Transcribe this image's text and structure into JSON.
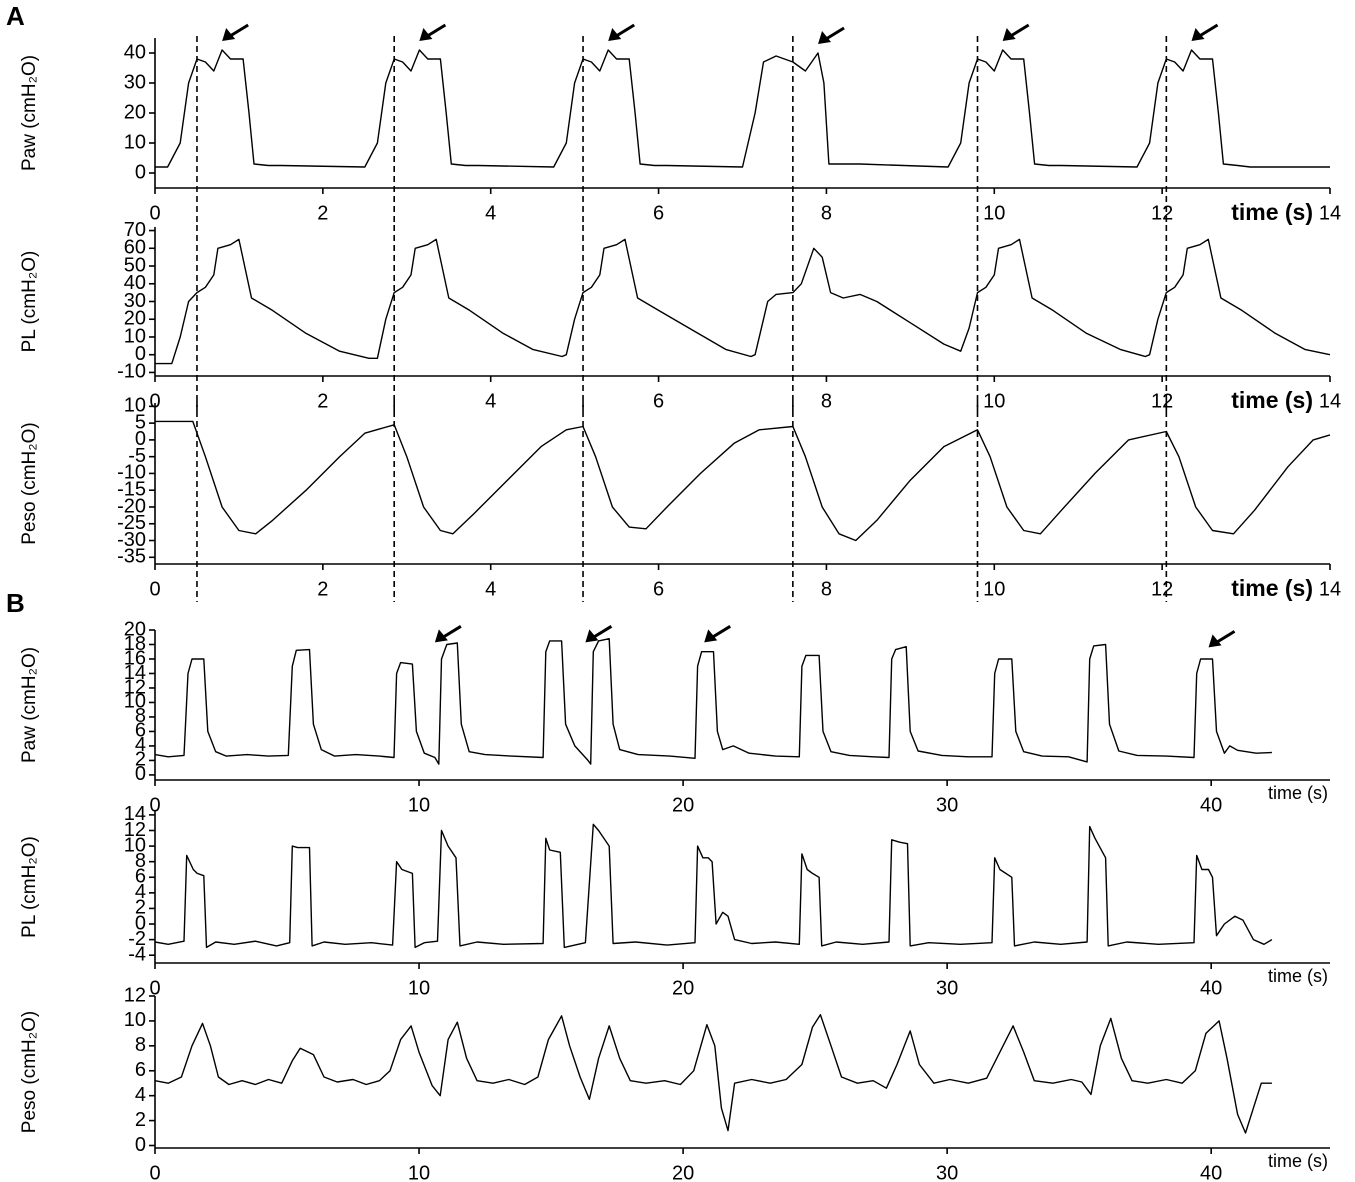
{
  "panel_labels": [
    "A",
    "B"
  ],
  "chart_data": [
    {
      "type": "line",
      "ylabel": "Paw (cmH₂O)",
      "xlabel": "time (s)",
      "color": "#000000",
      "xlim": [
        0,
        14
      ],
      "ylim": [
        -5,
        45
      ],
      "xticks": [
        0,
        2,
        4,
        6,
        8,
        10,
        12,
        14
      ],
      "yticks": [
        0,
        10,
        20,
        30,
        40
      ],
      "markers": [
        0.5,
        2.85,
        5.1,
        7.6,
        9.8,
        12.05
      ],
      "arrows": [
        [
          0.8,
          44
        ],
        [
          3.15,
          44
        ],
        [
          5.4,
          44
        ],
        [
          7.9,
          43
        ],
        [
          10.1,
          44
        ],
        [
          12.35,
          44
        ]
      ],
      "x": [
        0,
        0.15,
        0.3,
        0.4,
        0.5,
        0.6,
        0.7,
        0.8,
        0.9,
        1.05,
        1.12,
        1.18,
        1.35,
        1.5,
        2.5,
        2.65,
        2.75,
        2.85,
        2.95,
        3.05,
        3.15,
        3.25,
        3.4,
        3.47,
        3.53,
        3.7,
        3.85,
        4.75,
        4.9,
        5.0,
        5.1,
        5.2,
        5.3,
        5.4,
        5.5,
        5.65,
        5.72,
        5.78,
        5.95,
        6.1,
        7.0,
        7.15,
        7.25,
        7.4,
        7.6,
        7.75,
        7.9,
        7.97,
        8.03,
        8.2,
        8.4,
        9.45,
        9.6,
        9.7,
        9.8,
        9.9,
        10.0,
        10.1,
        10.2,
        10.35,
        10.42,
        10.48,
        10.65,
        10.8,
        11.7,
        11.85,
        11.95,
        12.05,
        12.15,
        12.25,
        12.35,
        12.45,
        12.6,
        12.67,
        12.73,
        12.9,
        13.05,
        14
      ],
      "values": [
        2,
        2,
        10,
        30,
        38,
        37,
        34,
        41,
        38,
        38,
        20,
        3,
        2.5,
        2.5,
        2,
        10,
        30,
        38,
        37,
        34,
        41,
        38,
        38,
        20,
        3,
        2.5,
        2.5,
        2,
        10,
        30,
        38,
        37,
        34,
        41,
        38,
        38,
        20,
        3,
        2.5,
        2.5,
        2,
        20,
        37,
        39,
        37,
        34,
        40,
        30,
        3,
        3,
        3,
        2,
        10,
        30,
        38,
        37,
        34,
        41,
        38,
        38,
        20,
        3,
        2.5,
        2.5,
        2,
        10,
        30,
        38,
        37,
        34,
        41,
        38,
        38,
        20,
        3,
        2.5,
        2,
        2
      ]
    },
    {
      "type": "line",
      "ylabel": "PL (cmH₂O)",
      "xlabel": "time (s)",
      "color": "#000000",
      "xlim": [
        0,
        14
      ],
      "ylim": [
        -12,
        72
      ],
      "xticks": [
        0,
        2,
        4,
        6,
        8,
        10,
        12,
        14
      ],
      "yticks": [
        -10,
        0,
        10,
        20,
        30,
        40,
        50,
        60,
        70
      ],
      "markers": [
        0.5,
        2.85,
        5.1,
        7.6,
        9.8,
        12.05
      ],
      "x": [
        0,
        0.2,
        0.3,
        0.4,
        0.5,
        0.6,
        0.7,
        0.75,
        0.9,
        1.0,
        1.15,
        1.4,
        1.8,
        2.2,
        2.55,
        2.65,
        2.75,
        2.85,
        2.95,
        3.05,
        3.1,
        3.25,
        3.35,
        3.5,
        3.75,
        4.15,
        4.5,
        4.85,
        4.9,
        5.0,
        5.1,
        5.2,
        5.3,
        5.35,
        5.5,
        5.6,
        5.75,
        6.0,
        6.4,
        6.8,
        7.1,
        7.15,
        7.3,
        7.4,
        7.6,
        7.7,
        7.85,
        7.95,
        8.05,
        8.2,
        8.4,
        8.6,
        9.0,
        9.4,
        9.6,
        9.7,
        9.8,
        9.9,
        10.0,
        10.05,
        10.2,
        10.3,
        10.45,
        10.7,
        11.1,
        11.5,
        11.8,
        11.85,
        11.95,
        12.05,
        12.15,
        12.25,
        12.3,
        12.45,
        12.55,
        12.7,
        12.95,
        13.35,
        13.7,
        14.0
      ],
      "values": [
        -5,
        -5,
        10,
        30,
        35,
        38,
        45,
        60,
        62,
        65,
        32,
        25,
        12,
        2,
        -2,
        -2,
        20,
        35,
        38,
        45,
        60,
        62,
        65,
        32,
        25,
        12,
        3,
        -1,
        0,
        20,
        35,
        38,
        45,
        60,
        62,
        65,
        32,
        25,
        14,
        3,
        -1,
        0,
        30,
        34,
        35,
        40,
        60,
        55,
        35,
        32,
        34,
        30,
        18,
        6,
        2,
        15,
        35,
        38,
        45,
        60,
        62,
        65,
        32,
        25,
        12,
        3,
        -1,
        0,
        20,
        35,
        38,
        45,
        60,
        62,
        65,
        32,
        25,
        12,
        3,
        0
      ]
    },
    {
      "type": "line",
      "ylabel": "Peso (cmH₂O)",
      "xlabel": "time (s)",
      "color": "#000000",
      "xlim": [
        0,
        14
      ],
      "ylim": [
        -37,
        11
      ],
      "xticks": [
        0,
        2,
        4,
        6,
        8,
        10,
        12,
        14
      ],
      "yticks": [
        -35,
        -30,
        -25,
        -20,
        -15,
        -10,
        -5,
        0,
        5,
        10
      ],
      "markers": [
        0.5,
        2.85,
        5.1,
        7.6,
        9.8,
        12.05
      ],
      "x": [
        0,
        0.45,
        0.6,
        0.8,
        1.0,
        1.2,
        1.4,
        1.8,
        2.2,
        2.5,
        2.85,
        3.0,
        3.2,
        3.4,
        3.55,
        3.8,
        4.2,
        4.6,
        4.9,
        5.1,
        5.25,
        5.45,
        5.65,
        5.85,
        6.1,
        6.5,
        6.9,
        7.2,
        7.6,
        7.75,
        7.95,
        8.15,
        8.35,
        8.6,
        9.0,
        9.4,
        9.8,
        9.95,
        10.15,
        10.35,
        10.55,
        10.8,
        11.2,
        11.6,
        12.05,
        12.2,
        12.4,
        12.6,
        12.85,
        13.1,
        13.5,
        13.8,
        14.0
      ],
      "values": [
        5.5,
        5.5,
        -5,
        -20,
        -27,
        -28,
        -24,
        -15,
        -5,
        2,
        4.5,
        -5,
        -20,
        -27,
        -28,
        -22,
        -12,
        -2,
        3,
        4,
        -5,
        -20,
        -26,
        -26.5,
        -20,
        -10,
        -1,
        3,
        4,
        -5,
        -20,
        -28,
        -30,
        -24,
        -12,
        -2,
        3,
        -5,
        -20,
        -27,
        -28,
        -21,
        -10,
        0,
        2.5,
        -5,
        -20,
        -27,
        -28,
        -21,
        -8,
        0,
        1.5
      ]
    },
    {
      "type": "line",
      "ylabel": "Paw (cmH₂O)",
      "xlabel": "time (s)",
      "color": "#000000",
      "xlim": [
        0,
        44.5
      ],
      "ylim": [
        -0.7,
        20
      ],
      "xticks": [
        0,
        10,
        20,
        30,
        40
      ],
      "yticks": [
        0,
        2,
        4,
        6,
        8,
        10,
        12,
        14,
        16,
        18,
        20
      ],
      "arrows": [
        [
          10.6,
          18.3
        ],
        [
          16.3,
          18.3
        ],
        [
          20.8,
          18.3
        ],
        [
          39.9,
          17.6
        ]
      ],
      "x": [
        0,
        0.5,
        1.1,
        1.25,
        1.4,
        1.85,
        2.0,
        2.3,
        2.7,
        3.5,
        4.3,
        5.05,
        5.2,
        5.35,
        5.85,
        6.0,
        6.3,
        6.8,
        7.6,
        8.5,
        9.05,
        9.15,
        9.3,
        9.75,
        9.9,
        10.2,
        10.6,
        10.75,
        10.85,
        11.05,
        11.45,
        11.6,
        11.9,
        12.5,
        13.5,
        14.7,
        14.8,
        14.95,
        15.4,
        15.55,
        15.9,
        16.4,
        16.5,
        16.6,
        16.8,
        17.2,
        17.35,
        17.6,
        18.3,
        19.5,
        20.45,
        20.55,
        20.7,
        21.15,
        21.3,
        21.5,
        21.9,
        22.5,
        23.5,
        24.4,
        24.5,
        24.65,
        25.15,
        25.3,
        25.6,
        26.3,
        27.2,
        27.8,
        27.9,
        28.05,
        28.45,
        28.6,
        28.9,
        29.8,
        30.8,
        31.7,
        31.8,
        31.95,
        32.45,
        32.6,
        32.9,
        33.6,
        34.6,
        35.3,
        35.4,
        35.55,
        36.0,
        36.15,
        36.5,
        37.2,
        38.3,
        39.35,
        39.45,
        39.6,
        40.05,
        40.2,
        40.5,
        40.7,
        41.0,
        41.7,
        42.3
      ],
      "values": [
        2.8,
        2.5,
        2.7,
        14,
        16,
        16,
        6,
        3.2,
        2.6,
        2.8,
        2.6,
        2.7,
        15,
        17.2,
        17.3,
        7,
        3.5,
        2.6,
        2.8,
        2.6,
        2.4,
        14,
        15.5,
        15.3,
        6,
        3,
        2.4,
        1.5,
        16,
        18,
        18.2,
        7,
        3.2,
        2.8,
        2.6,
        2.4,
        17,
        18.5,
        18.5,
        7,
        4,
        2,
        1.5,
        17,
        18.5,
        18.8,
        7,
        3.5,
        2.8,
        2.6,
        2.3,
        15,
        17,
        17,
        6,
        3.5,
        4,
        3,
        2.6,
        2.5,
        15,
        16.5,
        16.5,
        6,
        3.2,
        2.7,
        2.5,
        2.4,
        16,
        17.3,
        17.7,
        6,
        3.3,
        2.7,
        2.5,
        2.5,
        14,
        16,
        16,
        6,
        3.2,
        2.6,
        2.5,
        1.8,
        16,
        17.8,
        18,
        7,
        3.3,
        2.7,
        2.6,
        2.4,
        14,
        16,
        16,
        6,
        3,
        4,
        3.4,
        3,
        3.1
      ]
    },
    {
      "type": "line",
      "ylabel": "PL (cmH₂O)",
      "xlabel": "time (s)",
      "color": "#000000",
      "xlim": [
        0,
        44.5
      ],
      "ylim": [
        -5,
        14.5
      ],
      "xticks": [
        0,
        10,
        20,
        30,
        40
      ],
      "yticks": [
        -4,
        -2,
        0,
        2,
        4,
        6,
        8,
        10,
        12,
        14
      ],
      "x": [
        0,
        0.5,
        1.1,
        1.2,
        1.45,
        1.6,
        1.85,
        1.95,
        2.3,
        3.0,
        3.8,
        4.6,
        5.1,
        5.2,
        5.4,
        5.85,
        5.95,
        6.4,
        7.2,
        8.2,
        9.0,
        9.15,
        9.35,
        9.75,
        9.85,
        10.2,
        10.7,
        10.85,
        11.1,
        11.4,
        11.55,
        12.2,
        13.2,
        14.7,
        14.8,
        14.95,
        15.35,
        15.5,
        16.3,
        16.6,
        16.8,
        17.2,
        17.35,
        18.2,
        19.4,
        20.45,
        20.55,
        20.75,
        20.95,
        21.1,
        21.25,
        21.5,
        21.7,
        21.95,
        22.6,
        23.5,
        24.4,
        24.5,
        24.7,
        24.9,
        25.15,
        25.25,
        25.8,
        26.8,
        27.8,
        27.9,
        28.2,
        28.5,
        28.6,
        29.3,
        30.5,
        31.7,
        31.8,
        32.0,
        32.45,
        32.55,
        33.3,
        34.3,
        35.3,
        35.4,
        35.6,
        36.0,
        36.1,
        36.8,
        38.0,
        39.35,
        39.45,
        39.65,
        39.9,
        40.05,
        40.2,
        40.5,
        40.9,
        41.2,
        41.6,
        42.0,
        42.3
      ],
      "values": [
        -2.3,
        -2.6,
        -2.2,
        8.8,
        7,
        6.5,
        6.2,
        -3,
        -2.3,
        -2.6,
        -2.2,
        -2.8,
        -2.4,
        10,
        9.8,
        9.8,
        -2.8,
        -2.3,
        -2.6,
        -2.4,
        -2.7,
        8,
        7,
        6.5,
        -3,
        -2.4,
        -2.2,
        12,
        10,
        8.5,
        -2.8,
        -2.3,
        -2.6,
        -2.5,
        11,
        9.5,
        9.2,
        -3,
        -2.4,
        12.8,
        12,
        10,
        -2.5,
        -2.3,
        -2.7,
        -2.4,
        10,
        8.5,
        8.5,
        8,
        0,
        1.5,
        1,
        -2,
        -2.5,
        -2.3,
        -2.6,
        9,
        7,
        6.5,
        6,
        -2.8,
        -2.3,
        -2.6,
        -2.3,
        10.8,
        10.5,
        10.3,
        -2.8,
        -2.4,
        -2.6,
        -2.4,
        8.5,
        7,
        6,
        -2.8,
        -2.3,
        -2.6,
        -2.3,
        12.5,
        11,
        8.5,
        -2.8,
        -2.3,
        -2.6,
        -2.4,
        8.8,
        7,
        7,
        6,
        -1.5,
        0,
        1,
        0.5,
        -2,
        -2.6,
        -2
      ]
    },
    {
      "type": "line",
      "ylabel": "Peso (cmH₂O)",
      "xlabel": "time (s)",
      "color": "#000000",
      "xlim": [
        0,
        44.5
      ],
      "ylim": [
        -0.2,
        12
      ],
      "xticks": [
        0,
        10,
        20,
        30,
        40
      ],
      "yticks": [
        0,
        2,
        4,
        6,
        8,
        10,
        12
      ],
      "x": [
        0,
        0.5,
        1.0,
        1.4,
        1.8,
        2.1,
        2.4,
        2.8,
        3.3,
        3.8,
        4.3,
        4.8,
        5.2,
        5.5,
        6.0,
        6.4,
        6.9,
        7.5,
        8.0,
        8.5,
        8.9,
        9.3,
        9.7,
        10.0,
        10.5,
        10.8,
        11.1,
        11.45,
        11.8,
        12.2,
        12.8,
        13.4,
        14.0,
        14.5,
        14.9,
        15.4,
        15.7,
        16.1,
        16.45,
        16.8,
        17.2,
        17.6,
        18.0,
        18.6,
        19.3,
        19.9,
        20.4,
        20.9,
        21.2,
        21.45,
        21.7,
        21.95,
        22.6,
        23.3,
        23.9,
        24.5,
        24.9,
        25.2,
        25.6,
        26.0,
        26.6,
        27.2,
        27.7,
        28.1,
        28.6,
        28.95,
        29.5,
        30.1,
        30.8,
        31.5,
        32.0,
        32.5,
        32.9,
        33.3,
        34.0,
        34.7,
        35.1,
        35.45,
        35.8,
        36.2,
        36.6,
        37.0,
        37.6,
        38.3,
        38.9,
        39.4,
        39.8,
        40.3,
        40.6,
        41.0,
        41.3,
        41.6,
        41.9,
        42.3
      ],
      "values": [
        5.2,
        5,
        5.5,
        8,
        9.8,
        8,
        5.5,
        4.9,
        5.2,
        4.9,
        5.3,
        5,
        6.8,
        7.8,
        7.3,
        5.5,
        5.1,
        5.3,
        4.9,
        5.2,
        6,
        8.5,
        9.6,
        7.5,
        4.8,
        4,
        8.5,
        9.9,
        7,
        5.2,
        5,
        5.3,
        4.9,
        5.5,
        8.5,
        10.4,
        8,
        5.5,
        3.7,
        7,
        9.6,
        7,
        5.2,
        5,
        5.2,
        4.9,
        6,
        9.7,
        8,
        3,
        1.2,
        5,
        5.3,
        5,
        5.3,
        6.5,
        9.5,
        10.5,
        8,
        5.5,
        5,
        5.2,
        4.6,
        6.5,
        9.2,
        6.5,
        5,
        5.3,
        5,
        5.4,
        7.5,
        9.6,
        7.5,
        5.2,
        5,
        5.3,
        5.1,
        4.1,
        8,
        10.2,
        7,
        5.2,
        5,
        5.3,
        5,
        6,
        9,
        10,
        7,
        2.5,
        1,
        3,
        5,
        5
      ]
    }
  ]
}
